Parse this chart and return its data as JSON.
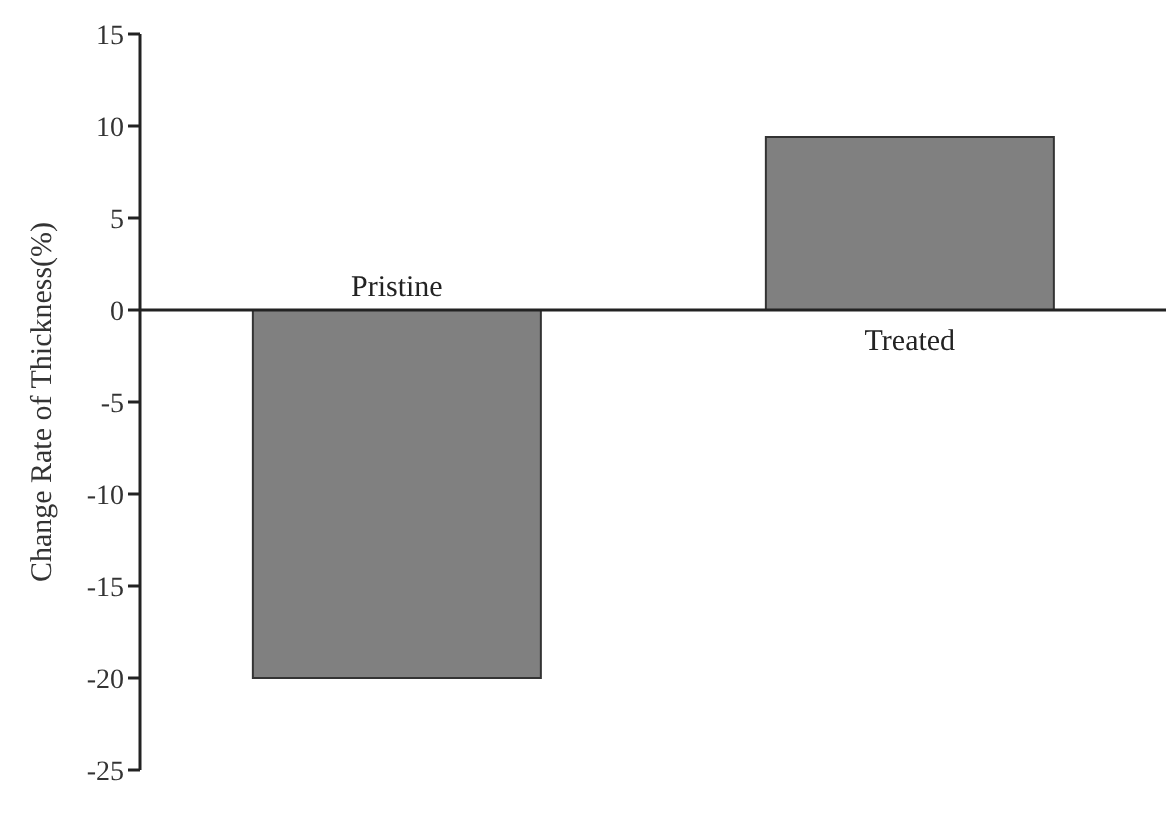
{
  "chart_data": {
    "type": "bar",
    "ylabel": "Change Rate of Thickness(%)",
    "categories": [
      "Pristine",
      "Treated"
    ],
    "values": [
      -20,
      9.4
    ],
    "color": "#808080",
    "ylim": [
      -25,
      15
    ],
    "yticks": [
      -25,
      -20,
      -15,
      -10,
      -5,
      0,
      5,
      10,
      15
    ],
    "legend": false
  }
}
